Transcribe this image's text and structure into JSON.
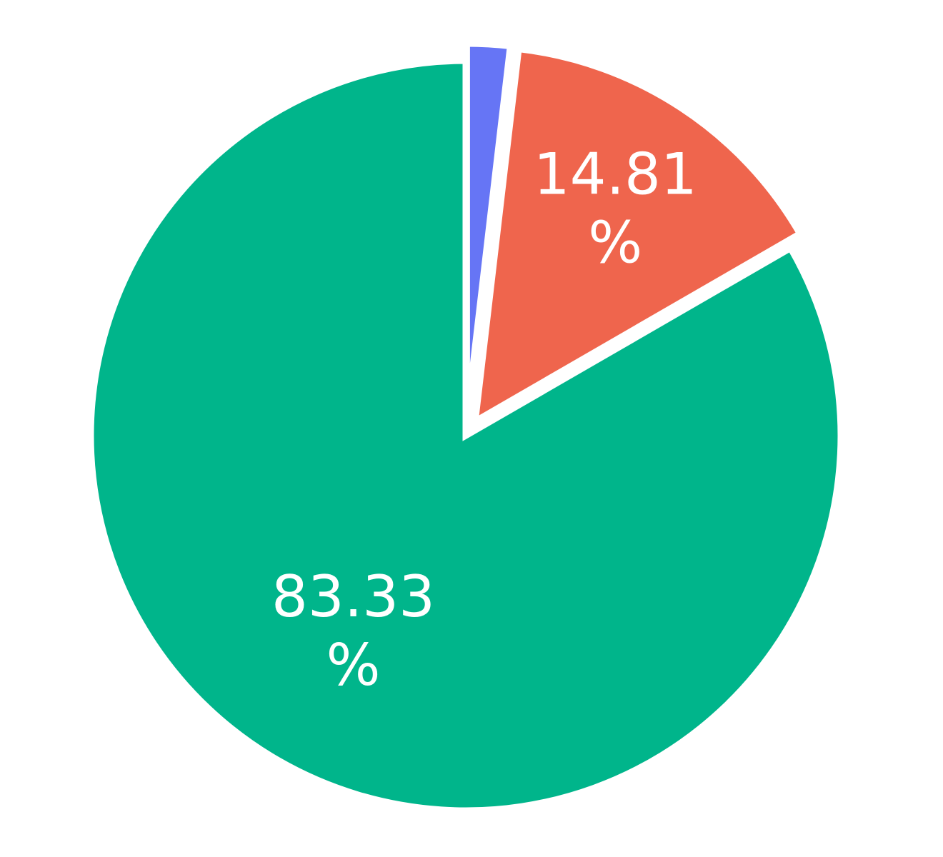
{
  "chart_data": {
    "type": "pie",
    "values": [
      1.85,
      14.81,
      83.33
    ],
    "colors": [
      "#6675f5",
      "#ef654d",
      "#00b58b"
    ],
    "labels": [
      "",
      "14.81\n%",
      "83.33\n%"
    ],
    "start_angle_deg": 0,
    "direction": "clockwise",
    "exploded": [
      true,
      true,
      false
    ]
  }
}
